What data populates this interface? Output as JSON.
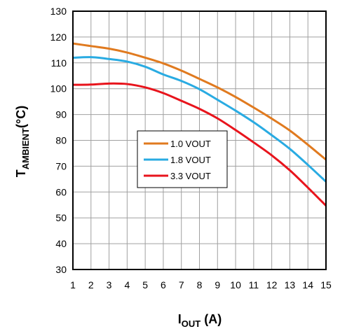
{
  "chart_data": {
    "type": "line",
    "xlabel": {
      "main": "I",
      "sub": "OUT",
      "suffix": " (A)"
    },
    "ylabel": {
      "main": "T",
      "sub": "AMBIENT",
      "suffix": "(°C)"
    },
    "xlim": [
      1,
      15
    ],
    "ylim": [
      30,
      130
    ],
    "xticks": [
      "1",
      "2",
      "3",
      "4",
      "5",
      "6",
      "7",
      "8",
      "9",
      "10",
      "11",
      "12",
      "13",
      "14",
      "15"
    ],
    "yticks": [
      "30",
      "40",
      "50",
      "60",
      "70",
      "80",
      "90",
      "100",
      "110",
      "120",
      "130"
    ],
    "grid": true,
    "legend_position": "center-left",
    "x": [
      1,
      2,
      3,
      4,
      5,
      6,
      7,
      8,
      9,
      10,
      11,
      12,
      13,
      14,
      15
    ],
    "series": [
      {
        "name": "1.0 VOUT",
        "color": "#E07A1F",
        "values": [
          117.5,
          116.5,
          115.5,
          114,
          112,
          109.8,
          107,
          103.8,
          100.5,
          96.8,
          92.7,
          88.4,
          83.8,
          78.3,
          72.5
        ]
      },
      {
        "name": "1.8 VOUT",
        "color": "#29ABE2",
        "values": [
          112,
          112.2,
          111.5,
          110.5,
          108.5,
          105.5,
          103,
          99.8,
          95.7,
          91.5,
          87,
          82,
          76.7,
          70.5,
          64
        ]
      },
      {
        "name": "3.3 VOUT",
        "color": "#E8141C",
        "values": [
          101.5,
          101.6,
          102,
          101.8,
          100.5,
          98.3,
          95.3,
          92.2,
          88.5,
          84,
          79.2,
          74.2,
          68.4,
          61.7,
          54.7
        ]
      }
    ]
  }
}
